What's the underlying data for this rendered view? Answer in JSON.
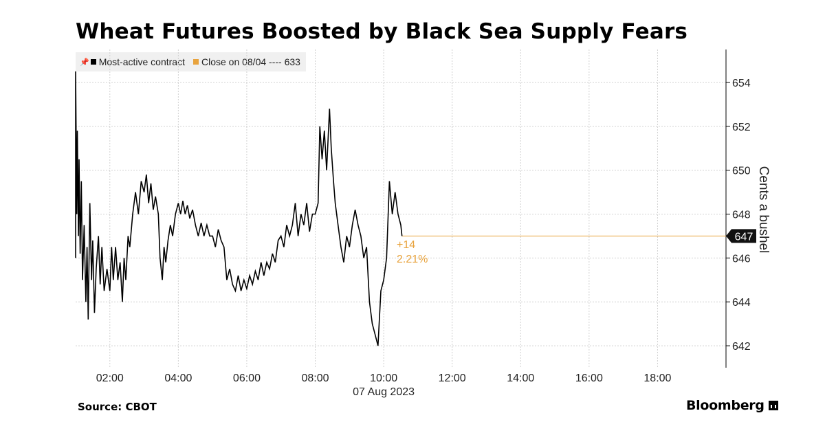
{
  "title": "Wheat Futures Boosted by Black Sea Supply Fears",
  "legend": {
    "series_label": "Most-active contract",
    "reference_label": "Close on 08/04 ---- 633"
  },
  "source": "Source: CBOT",
  "brand": "Bloomberg",
  "colors": {
    "series": "#000000",
    "reference": "#e8a33d",
    "grid": "#d0d0d0",
    "legend_bg": "#f0f0f0"
  },
  "chart_data": {
    "type": "line",
    "title": "Wheat Futures Boosted by Black Sea Supply Fears",
    "xlabel": "07 Aug 2023",
    "ylabel": "Cents a bushel",
    "x_range": [
      "01:00",
      "20:00"
    ],
    "ylim": [
      641,
      655.5
    ],
    "y_ticks": [
      642,
      644,
      646,
      648,
      650,
      652,
      654
    ],
    "x_ticks": [
      "02:00",
      "04:00",
      "06:00",
      "08:00",
      "10:00",
      "12:00",
      "14:00",
      "16:00",
      "18:00"
    ],
    "grid": true,
    "last_value_label": "647",
    "change_label": "+14",
    "change_pct_label": "2.21%",
    "series": [
      {
        "name": "Most-active contract",
        "points": [
          [
            "01:00",
            646.0
          ],
          [
            "01:00",
            654.5
          ],
          [
            "01:02",
            648.0
          ],
          [
            "01:03",
            651.8
          ],
          [
            "01:05",
            647.0
          ],
          [
            "01:06",
            650.5
          ],
          [
            "01:08",
            646.2
          ],
          [
            "01:10",
            649.5
          ],
          [
            "01:12",
            645.0
          ],
          [
            "01:15",
            647.5
          ],
          [
            "01:18",
            644.0
          ],
          [
            "01:20",
            646.5
          ],
          [
            "01:22",
            643.2
          ],
          [
            "01:25",
            648.5
          ],
          [
            "01:28",
            645.0
          ],
          [
            "01:30",
            646.8
          ],
          [
            "01:33",
            643.5
          ],
          [
            "01:36",
            645.5
          ],
          [
            "01:40",
            647.0
          ],
          [
            "01:43",
            644.8
          ],
          [
            "01:46",
            646.5
          ],
          [
            "01:50",
            644.5
          ],
          [
            "01:55",
            645.5
          ],
          [
            "02:00",
            644.5
          ],
          [
            "02:03",
            646.5
          ],
          [
            "02:06",
            645.0
          ],
          [
            "02:10",
            646.5
          ],
          [
            "02:14",
            645.0
          ],
          [
            "02:18",
            645.8
          ],
          [
            "02:22",
            644.0
          ],
          [
            "02:25",
            646.0
          ],
          [
            "02:28",
            645.0
          ],
          [
            "02:32",
            647.0
          ],
          [
            "02:35",
            646.5
          ],
          [
            "02:40",
            648.0
          ],
          [
            "02:45",
            649.0
          ],
          [
            "02:50",
            648.0
          ],
          [
            "02:55",
            649.5
          ],
          [
            "03:00",
            649.0
          ],
          [
            "03:04",
            649.8
          ],
          [
            "03:08",
            648.5
          ],
          [
            "03:12",
            649.4
          ],
          [
            "03:16",
            648.2
          ],
          [
            "03:20",
            648.8
          ],
          [
            "03:25",
            648.0
          ],
          [
            "03:28",
            646.0
          ],
          [
            "03:32",
            645.0
          ],
          [
            "03:35",
            646.5
          ],
          [
            "03:38",
            645.8
          ],
          [
            "03:42",
            646.8
          ],
          [
            "03:46",
            647.5
          ],
          [
            "03:50",
            647.0
          ],
          [
            "03:55",
            648.0
          ],
          [
            "04:00",
            648.5
          ],
          [
            "04:04",
            648.0
          ],
          [
            "04:08",
            648.6
          ],
          [
            "04:12",
            648.0
          ],
          [
            "04:16",
            648.4
          ],
          [
            "04:20",
            647.8
          ],
          [
            "04:25",
            648.2
          ],
          [
            "04:30",
            647.5
          ],
          [
            "04:35",
            647.0
          ],
          [
            "04:40",
            647.6
          ],
          [
            "04:45",
            647.0
          ],
          [
            "04:50",
            647.5
          ],
          [
            "04:55",
            647.0
          ],
          [
            "05:00",
            647.0
          ],
          [
            "05:05",
            646.5
          ],
          [
            "05:10",
            647.3
          ],
          [
            "05:15",
            646.8
          ],
          [
            "05:20",
            646.5
          ],
          [
            "05:25",
            645.0
          ],
          [
            "05:30",
            645.5
          ],
          [
            "05:35",
            644.8
          ],
          [
            "05:40",
            644.5
          ],
          [
            "05:45",
            645.2
          ],
          [
            "05:50",
            644.5
          ],
          [
            "05:55",
            645.0
          ],
          [
            "06:00",
            644.6
          ],
          [
            "06:05",
            645.2
          ],
          [
            "06:10",
            644.8
          ],
          [
            "06:15",
            645.4
          ],
          [
            "06:20",
            645.0
          ],
          [
            "06:25",
            645.8
          ],
          [
            "06:30",
            645.2
          ],
          [
            "06:35",
            645.8
          ],
          [
            "06:40",
            645.5
          ],
          [
            "06:45",
            646.2
          ],
          [
            "06:50",
            645.8
          ],
          [
            "06:55",
            646.8
          ],
          [
            "07:00",
            647.0
          ],
          [
            "07:05",
            646.5
          ],
          [
            "07:10",
            647.5
          ],
          [
            "07:15",
            647.0
          ],
          [
            "07:20",
            647.5
          ],
          [
            "07:25",
            648.5
          ],
          [
            "07:30",
            647.0
          ],
          [
            "07:35",
            648.0
          ],
          [
            "07:40",
            647.5
          ],
          [
            "07:45",
            648.5
          ],
          [
            "07:50",
            647.2
          ],
          [
            "07:55",
            648.0
          ],
          [
            "08:00",
            648.0
          ],
          [
            "08:05",
            648.5
          ],
          [
            "08:08",
            652.0
          ],
          [
            "08:12",
            650.5
          ],
          [
            "08:16",
            651.8
          ],
          [
            "08:20",
            650.0
          ],
          [
            "08:25",
            652.8
          ],
          [
            "08:28",
            651.0
          ],
          [
            "08:32",
            649.5
          ],
          [
            "08:35",
            648.5
          ],
          [
            "08:40",
            647.5
          ],
          [
            "08:45",
            646.5
          ],
          [
            "08:50",
            645.8
          ],
          [
            "08:55",
            647.0
          ],
          [
            "09:00",
            646.5
          ],
          [
            "09:05",
            647.5
          ],
          [
            "09:10",
            648.2
          ],
          [
            "09:15",
            647.5
          ],
          [
            "09:20",
            647.0
          ],
          [
            "09:25",
            646.0
          ],
          [
            "09:30",
            646.5
          ],
          [
            "09:35",
            644.0
          ],
          [
            "09:40",
            643.0
          ],
          [
            "09:45",
            642.5
          ],
          [
            "09:50",
            642.0
          ],
          [
            "09:55",
            644.5
          ],
          [
            "10:00",
            645.0
          ],
          [
            "10:05",
            646.0
          ],
          [
            "10:10",
            649.5
          ],
          [
            "10:15",
            648.0
          ],
          [
            "10:20",
            649.0
          ],
          [
            "10:25",
            648.0
          ],
          [
            "10:30",
            647.5
          ],
          [
            "10:32",
            647.0
          ]
        ]
      }
    ],
    "reference_line": {
      "name": "Close on 08/04",
      "value": 633
    }
  }
}
